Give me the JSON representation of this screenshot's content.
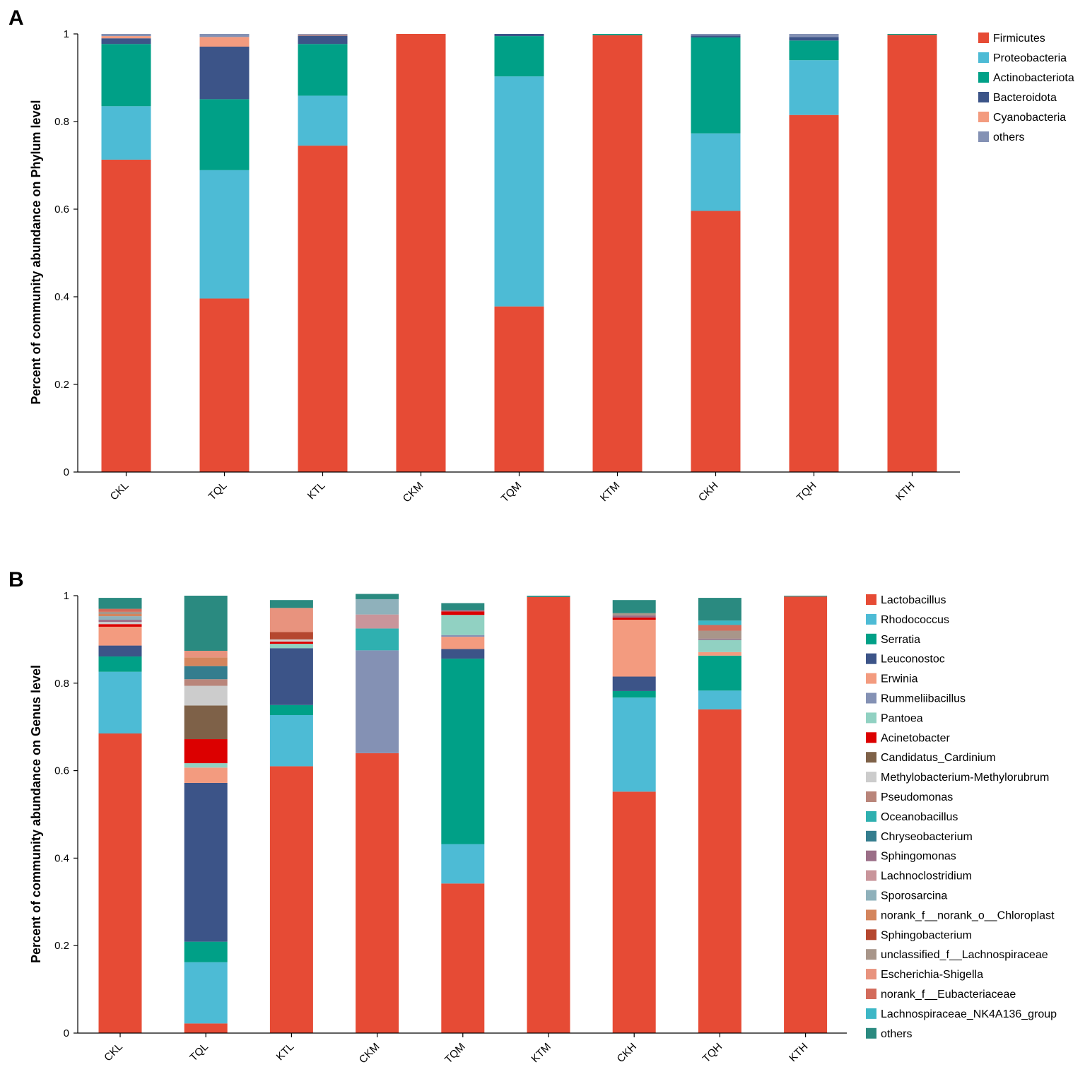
{
  "chart_data": [
    {
      "type": "bar",
      "stacked": true,
      "panel_label": "A",
      "ylabel": "Percent of community abundance on Phylum level",
      "xlabel": "",
      "ylim": [
        0,
        1
      ],
      "yticks": [
        "0",
        "0.2",
        "0.4",
        "0.6",
        "0.8",
        "1"
      ],
      "legend_position": "right",
      "categories": [
        "CKL",
        "TQL",
        "KTL",
        "CKM",
        "TQM",
        "KTM",
        "CKH",
        "TQH",
        "KTH"
      ],
      "series": [
        {
          "name": "Firmicutes",
          "color": "#e64b35",
          "values": [
            0.713,
            0.396,
            0.745,
            1.0,
            0.378,
            0.997,
            0.596,
            0.815,
            0.998
          ]
        },
        {
          "name": "Proteobacteria",
          "color": "#4dbbd5",
          "values": [
            0.122,
            0.293,
            0.114,
            0.0,
            0.525,
            0.0,
            0.177,
            0.125,
            0.0
          ]
        },
        {
          "name": "Actinobacteriota",
          "color": "#00a087",
          "values": [
            0.142,
            0.162,
            0.118,
            0.0,
            0.092,
            0.003,
            0.219,
            0.045,
            0.002
          ]
        },
        {
          "name": "Bacteroidota",
          "color": "#3c5488",
          "values": [
            0.013,
            0.12,
            0.019,
            0.0,
            0.005,
            0.0,
            0.004,
            0.008,
            0.0
          ]
        },
        {
          "name": "Cyanobacteria",
          "color": "#f39b7f",
          "values": [
            0.005,
            0.022,
            0.002,
            0.0,
            0.0,
            0.0,
            0.0,
            0.0,
            0.0
          ]
        },
        {
          "name": "others",
          "color": "#8491b4",
          "values": [
            0.005,
            0.007,
            0.002,
            0.0,
            0.0,
            0.0,
            0.004,
            0.007,
            0.0
          ]
        }
      ]
    },
    {
      "type": "bar",
      "stacked": true,
      "panel_label": "B",
      "ylabel": "Percent of community abundance on Genus level",
      "xlabel": "",
      "ylim": [
        0,
        1
      ],
      "yticks": [
        "0",
        "0.2",
        "0.4",
        "0.6",
        "0.8",
        "1"
      ],
      "legend_position": "right",
      "categories": [
        "CKL",
        "TQL",
        "KTL",
        "CKM",
        "TQM",
        "KTM",
        "CKH",
        "TQH",
        "KTH"
      ],
      "series": [
        {
          "name": "Lactobacillus",
          "color": "#e64b35",
          "values": [
            0.685,
            0.022,
            0.61,
            0.64,
            0.342,
            0.997,
            0.552,
            0.74,
            0.998
          ]
        },
        {
          "name": "Rhodococcus",
          "color": "#4dbbd5",
          "values": [
            0.141,
            0.14,
            0.117,
            0.0,
            0.09,
            0.0,
            0.215,
            0.043,
            0.0
          ]
        },
        {
          "name": "Serratia",
          "color": "#00a087",
          "values": [
            0.035,
            0.047,
            0.023,
            0.0,
            0.424,
            0.0,
            0.015,
            0.08,
            0.0
          ]
        },
        {
          "name": "Leuconostoc",
          "color": "#3c5488",
          "values": [
            0.025,
            0.363,
            0.13,
            0.0,
            0.022,
            0.0,
            0.033,
            0.0,
            0.0
          ]
        },
        {
          "name": "Erwinia",
          "color": "#f39b7f",
          "values": [
            0.043,
            0.035,
            0.0,
            0.0,
            0.028,
            0.0,
            0.13,
            0.008,
            0.0
          ]
        },
        {
          "name": "Rummeliibacillus",
          "color": "#8491b4",
          "values": [
            0.0,
            0.0,
            0.0,
            0.235,
            0.004,
            0.0,
            0.0,
            0.0,
            0.0
          ]
        },
        {
          "name": "Pantoea",
          "color": "#91d1c2",
          "values": [
            0.0,
            0.01,
            0.01,
            0.0,
            0.046,
            0.0,
            0.0,
            0.028,
            0.0
          ]
        },
        {
          "name": "Acinetobacter",
          "color": "#dc0000",
          "values": [
            0.006,
            0.055,
            0.005,
            0.0,
            0.008,
            0.0,
            0.005,
            0.0,
            0.0
          ]
        },
        {
          "name": "Candidatus_Cardinium",
          "color": "#7e6148",
          "values": [
            0.0,
            0.077,
            0.0,
            0.0,
            0.0,
            0.0,
            0.0,
            0.0,
            0.0
          ]
        },
        {
          "name": "Methylobacterium-Methylorubrum",
          "color": "#cccccc",
          "values": [
            0.005,
            0.045,
            0.005,
            0.0,
            0.0,
            0.0,
            0.0,
            0.0,
            0.0
          ]
        },
        {
          "name": "Pseudomonas",
          "color": "#b9857a",
          "values": [
            0.0,
            0.015,
            0.0,
            0.0,
            0.0,
            0.0,
            0.0,
            0.0,
            0.0
          ]
        },
        {
          "name": "Oceanobacillus",
          "color": "#2fb0b0",
          "values": [
            0.0,
            0.0,
            0.0,
            0.05,
            0.0,
            0.0,
            0.0,
            0.0,
            0.0
          ]
        },
        {
          "name": "Chryseobacterium",
          "color": "#347d8e",
          "values": [
            0.0,
            0.03,
            0.0,
            0.0,
            0.0,
            0.0,
            0.0,
            0.0,
            0.0
          ]
        },
        {
          "name": "Sphingomonas",
          "color": "#9b6e87",
          "values": [
            0.005,
            0.0,
            0.0,
            0.0,
            0.003,
            0.0,
            0.005,
            0.003,
            0.0
          ]
        },
        {
          "name": "Lachnoclostridium",
          "color": "#c9959b",
          "values": [
            0.0,
            0.0,
            0.0,
            0.032,
            0.0,
            0.0,
            0.0,
            0.0,
            0.0
          ]
        },
        {
          "name": "Sporosarcina",
          "color": "#8fb1bb",
          "values": [
            0.008,
            0.0,
            0.0,
            0.035,
            0.0,
            0.0,
            0.0,
            0.0,
            0.0
          ]
        },
        {
          "name": "norank_f__norank_o__Chloroplast",
          "color": "#d4855d",
          "values": [
            0.005,
            0.02,
            0.0,
            0.0,
            0.0,
            0.0,
            0.0,
            0.0,
            0.0
          ]
        },
        {
          "name": "Sphingobacterium",
          "color": "#b5472f",
          "values": [
            0.0,
            0.0,
            0.017,
            0.0,
            0.0,
            0.0,
            0.0,
            0.0,
            0.0
          ]
        },
        {
          "name": "unclassified_f__Lachnospiraceae",
          "color": "#a8968a",
          "values": [
            0.005,
            0.0,
            0.0,
            0.0,
            0.0,
            0.0,
            0.005,
            0.018,
            0.0
          ]
        },
        {
          "name": "Escherichia-Shigella",
          "color": "#e8937e",
          "values": [
            0.0,
            0.015,
            0.055,
            0.0,
            0.0,
            0.0,
            0.0,
            0.0,
            0.0
          ]
        },
        {
          "name": "norank_f__Eubacteriaceae",
          "color": "#d36b5b",
          "values": [
            0.007,
            0.0,
            0.0,
            0.0,
            0.0,
            0.0,
            0.0,
            0.013,
            0.0
          ]
        },
        {
          "name": "Lachnospiraceae_NK4A136_group",
          "color": "#3db7c6",
          "values": [
            0.0,
            0.0,
            0.0,
            0.0,
            0.0,
            0.0,
            0.0,
            0.01,
            0.0
          ]
        },
        {
          "name": "others",
          "color": "#2a8a80",
          "values": [
            0.025,
            0.126,
            0.018,
            0.012,
            0.016,
            0.003,
            0.03,
            0.052,
            0.002
          ]
        }
      ]
    }
  ]
}
